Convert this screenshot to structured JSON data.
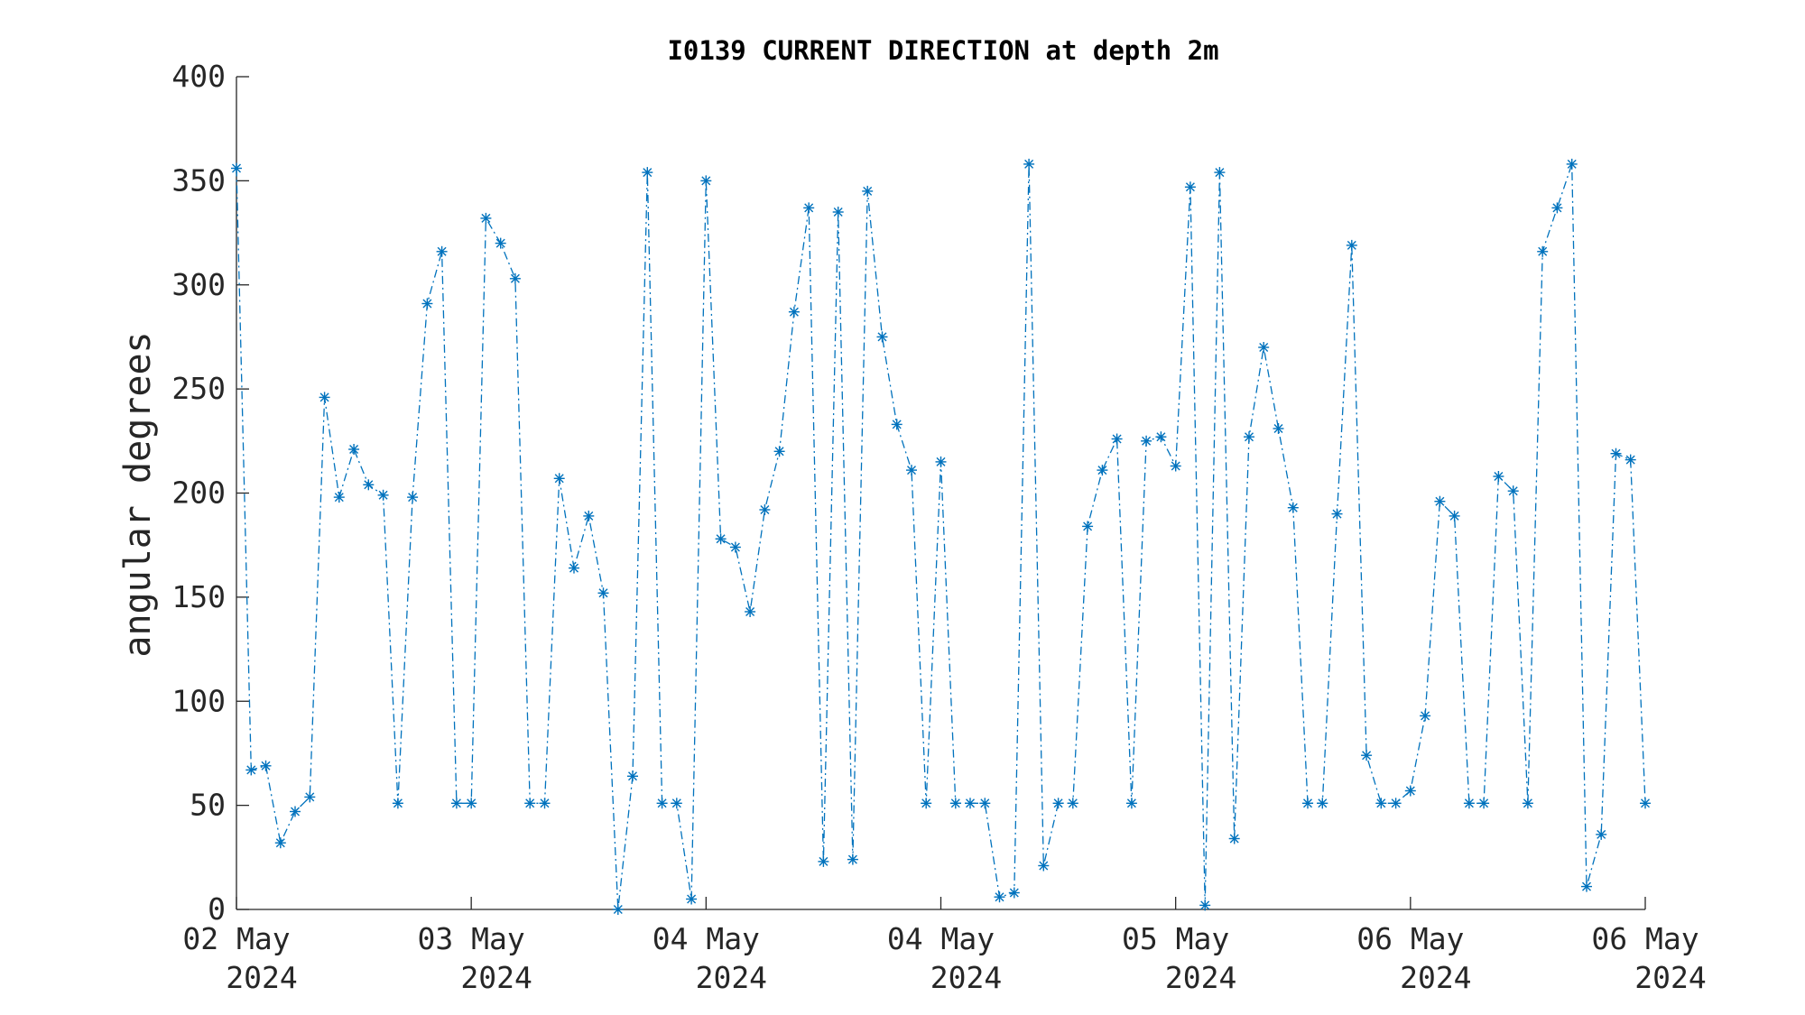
{
  "chart_data": {
    "type": "line",
    "title": "I0139 CURRENT DIRECTION at depth 2m",
    "xlabel": "",
    "ylabel": "angular degrees",
    "ylim": [
      0,
      400
    ],
    "yticks": [
      "0",
      "50",
      "100",
      "150",
      "200",
      "250",
      "300",
      "350",
      "400"
    ],
    "xticks": [
      {
        "l1": "02 May",
        "l2": "2024"
      },
      {
        "l1": "03 May",
        "l2": "2024"
      },
      {
        "l1": "04 May",
        "l2": "2024"
      },
      {
        "l1": "04 May",
        "l2": "2024"
      },
      {
        "l1": "05 May",
        "l2": "2024"
      },
      {
        "l1": "06 May",
        "l2": "2024"
      },
      {
        "l1": "06 May",
        "l2": "2024"
      }
    ],
    "grid": false,
    "series": [
      {
        "name": "",
        "color": "#0072BD",
        "line_style": "dash-dot",
        "marker": "asterisk",
        "values": [
          356,
          67,
          69,
          32,
          47,
          54,
          246,
          198,
          221,
          204,
          199,
          51,
          198,
          291,
          316,
          51,
          51,
          332,
          320,
          303,
          51,
          51,
          207,
          164,
          189,
          152,
          0,
          64,
          354,
          51,
          51,
          5,
          350,
          178,
          174,
          143,
          192,
          220,
          287,
          337,
          23,
          335,
          24,
          345,
          275,
          233,
          211,
          51,
          215,
          51,
          51,
          51,
          6,
          8,
          358,
          21,
          51,
          51,
          184,
          211,
          226,
          51,
          225,
          227,
          213,
          347,
          2,
          354,
          34,
          227,
          270,
          231,
          193,
          51,
          51,
          190,
          319,
          74,
          51,
          51,
          57,
          93,
          196,
          189,
          51,
          51,
          208,
          201,
          51,
          316,
          337,
          358,
          11,
          36,
          219,
          216,
          51
        ]
      }
    ]
  }
}
